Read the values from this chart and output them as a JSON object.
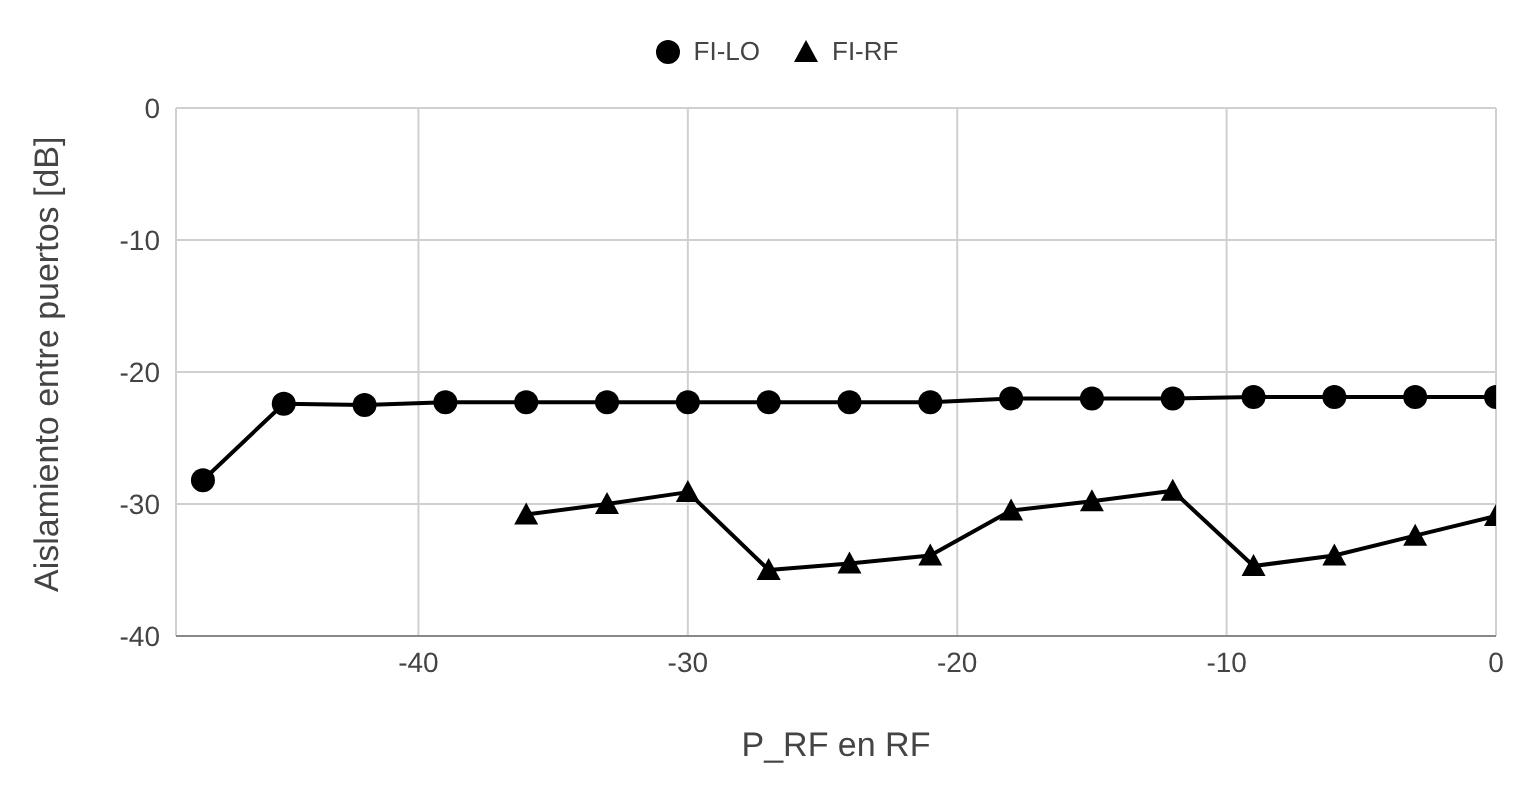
{
  "chart_data": {
    "type": "line",
    "xlabel": "P_RF en RF",
    "ylabel": "Aislamiento entre puertos [dB]",
    "xlim": [
      -49,
      0
    ],
    "xticks": [
      -40,
      -30,
      -20,
      -10,
      0
    ],
    "ylim": [
      -40,
      0
    ],
    "yticks": [
      0,
      -10,
      -20,
      -30,
      -40
    ],
    "grid": true,
    "legend": "top",
    "line_style": "solid",
    "series": [
      {
        "name": "FI-LO",
        "color": "#000000",
        "marker": "circle",
        "x": [
          -48,
          -45,
          -42,
          -39,
          -36,
          -33,
          -30,
          -27,
          -24,
          -21,
          -18,
          -15,
          -12,
          -9,
          -6,
          -3,
          0
        ],
        "values": [
          -28.2,
          -22.4,
          -22.5,
          -22.3,
          -22.3,
          -22.3,
          -22.3,
          -22.3,
          -22.3,
          -22.3,
          -22.0,
          -22.0,
          -22.0,
          -21.9,
          -21.9,
          -21.9,
          -21.9
        ]
      },
      {
        "name": "FI-RF",
        "color": "#000000",
        "marker": "triangle",
        "x": [
          -36,
          -33,
          -30,
          -27,
          -24,
          -21,
          -18,
          -15,
          -12,
          -9,
          -6,
          -3,
          0
        ],
        "values": [
          -30.8,
          -30.0,
          -29.1,
          -35.0,
          -34.5,
          -33.9,
          -30.5,
          -29.8,
          -29.0,
          -34.7,
          -33.9,
          -32.4,
          -30.9
        ]
      }
    ]
  }
}
